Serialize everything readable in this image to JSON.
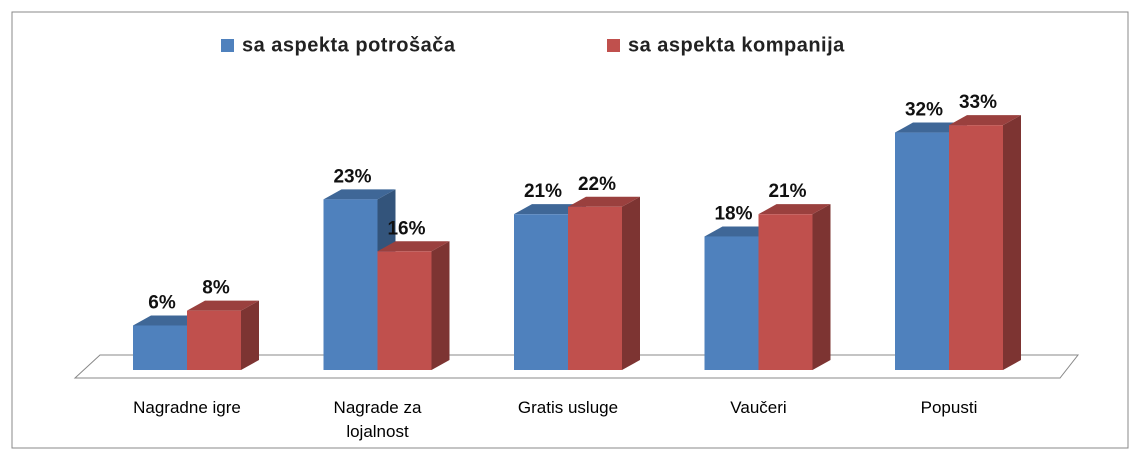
{
  "chart_data": {
    "type": "bar",
    "categories": [
      "Nagradne igre",
      "Nagrade za lojalnost",
      "Gratis usluge",
      "Vaučeri",
      "Popusti"
    ],
    "series": [
      {
        "name": "sa aspekta potrošača",
        "color": "#4f81bd",
        "values": [
          6,
          23,
          21,
          18,
          32
        ],
        "value_labels": [
          "6%",
          "23%",
          "21%",
          "18%",
          "32%"
        ]
      },
      {
        "name": "sa aspekta kompanija",
        "color": "#c0504d",
        "values": [
          8,
          16,
          22,
          21,
          33
        ],
        "value_labels": [
          "8%",
          "16%",
          "22%",
          "21%",
          "33%"
        ]
      }
    ],
    "legend": "top"
  }
}
